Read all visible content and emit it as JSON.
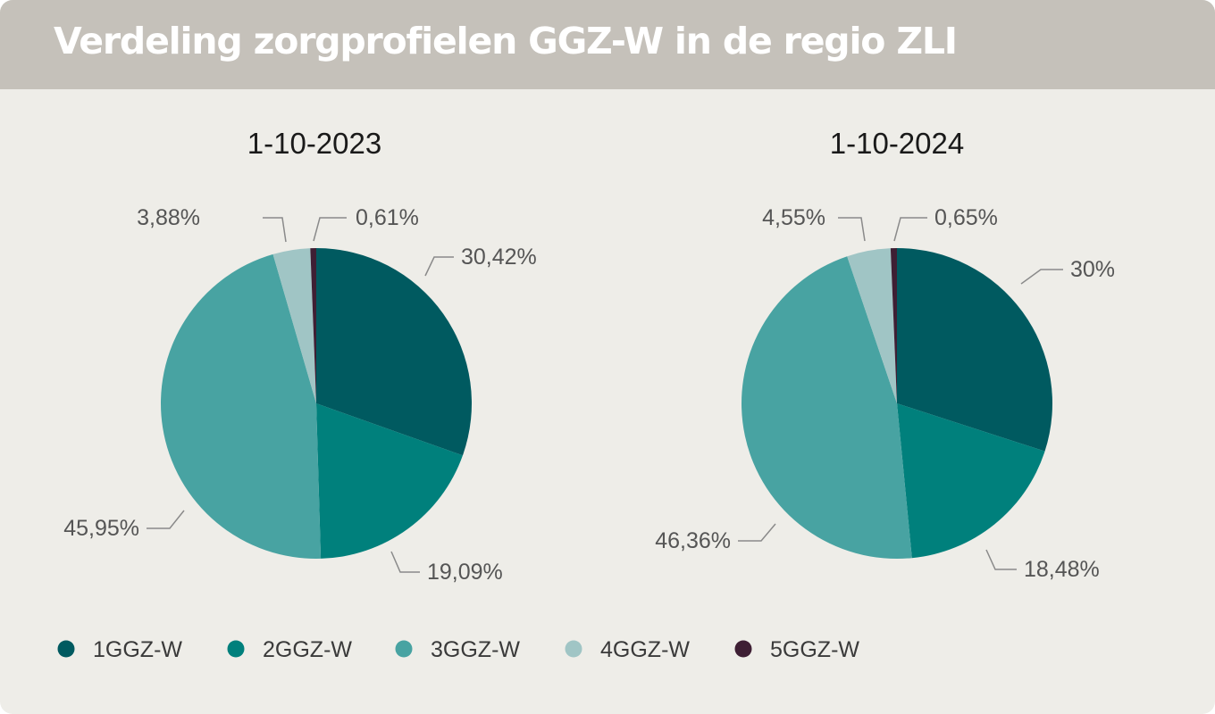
{
  "title": "Verdeling zorgprofielen GGZ-W in de regio ZLI",
  "colors": {
    "1GGZ-W": "#005a60",
    "2GGZ-W": "#00807c",
    "3GGZ-W": "#48a3a2",
    "4GGZ-W": "#a0c5c5",
    "5GGZ-W": "#3e1f34"
  },
  "chart_data": [
    {
      "type": "pie",
      "title": "1-10-2023",
      "categories": [
        "1GGZ-W",
        "2GGZ-W",
        "3GGZ-W",
        "4GGZ-W",
        "5GGZ-W"
      ],
      "values": [
        30.42,
        19.09,
        45.95,
        3.88,
        0.61
      ],
      "labels": [
        "30,42%",
        "19,09%",
        "45,95%",
        "3,88%",
        "0,61%"
      ],
      "legend": "bottom"
    },
    {
      "type": "pie",
      "title": "1-10-2024",
      "categories": [
        "1GGZ-W",
        "2GGZ-W",
        "3GGZ-W",
        "4GGZ-W",
        "5GGZ-W"
      ],
      "values": [
        30,
        18.48,
        46.36,
        4.55,
        0.65
      ],
      "labels": [
        "30%",
        "18,48%",
        "46,36%",
        "4,55%",
        "0,65%"
      ],
      "legend": "bottom"
    }
  ],
  "legend": [
    "1GGZ-W",
    "2GGZ-W",
    "3GGZ-W",
    "4GGZ-W",
    "5GGZ-W"
  ]
}
